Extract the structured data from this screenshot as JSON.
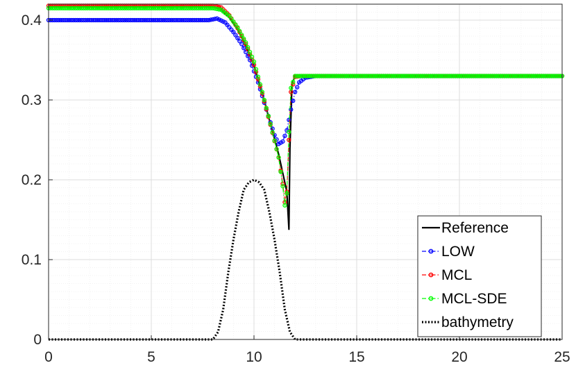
{
  "chart_data": {
    "type": "line",
    "title": "",
    "xlabel": "",
    "ylabel": "",
    "xlim": [
      0,
      25
    ],
    "ylim": [
      0,
      0.42
    ],
    "xticks": [
      0,
      5,
      10,
      15,
      20,
      25
    ],
    "xtick_labels": [
      "0",
      "5",
      "10",
      "15",
      "20",
      "25"
    ],
    "yticks": [
      0,
      0.1,
      0.2,
      0.3,
      0.4
    ],
    "ytick_labels": [
      "0",
      "0.1",
      "0.2",
      "0.3",
      "0.4"
    ],
    "grid": true,
    "minor_grid": true,
    "legend_position": "bottom-right",
    "colors": {
      "reference": "#000000",
      "low": "#0000ff",
      "mcl": "#ff0000",
      "mcl_sde": "#00ff00",
      "bathymetry": "#000000",
      "grid": "#dcdcdc",
      "axes": "#262626"
    },
    "series": [
      {
        "name": "Reference",
        "style": "solid",
        "marker": "none",
        "x": [
          0,
          8.0,
          8.4,
          8.8,
          9.2,
          9.6,
          10.0,
          10.4,
          10.8,
          11.2,
          11.6,
          11.7,
          11.75,
          11.85,
          12.0,
          25
        ],
        "y": [
          0.417,
          0.417,
          0.413,
          0.403,
          0.388,
          0.368,
          0.343,
          0.309,
          0.27,
          0.232,
          0.185,
          0.138,
          0.24,
          0.32,
          0.33,
          0.33
        ]
      },
      {
        "name": "LOW",
        "style": "dashdot",
        "marker": "circle",
        "x": [
          0,
          7.8,
          8.2,
          8.6,
          9.0,
          9.4,
          9.8,
          10.2,
          10.6,
          11.0,
          11.2,
          11.4,
          11.6,
          11.8,
          12.0,
          12.2,
          12.5,
          13.0,
          25
        ],
        "y": [
          0.4,
          0.4,
          0.402,
          0.397,
          0.385,
          0.37,
          0.35,
          0.322,
          0.288,
          0.256,
          0.245,
          0.248,
          0.262,
          0.288,
          0.31,
          0.322,
          0.328,
          0.33,
          0.33
        ],
        "markers_x": [
          0,
          25
        ],
        "marker_spacing": 0.1
      },
      {
        "name": "MCL",
        "style": "dashdot",
        "marker": "circle",
        "x": [
          0,
          8.0,
          8.4,
          8.8,
          9.2,
          9.6,
          10.0,
          10.4,
          10.8,
          11.2,
          11.4,
          11.5,
          11.6,
          11.7,
          11.8,
          12.0,
          12.3,
          25
        ],
        "y": [
          0.418,
          0.418,
          0.416,
          0.406,
          0.39,
          0.37,
          0.344,
          0.308,
          0.269,
          0.228,
          0.195,
          0.172,
          0.185,
          0.25,
          0.31,
          0.329,
          0.33,
          0.33
        ],
        "marker_spacing": 0.1
      },
      {
        "name": "MCL-SDE",
        "style": "dashdot",
        "marker": "circle",
        "x": [
          0,
          8.0,
          8.4,
          8.8,
          9.2,
          9.6,
          10.0,
          10.4,
          10.8,
          11.2,
          11.4,
          11.5,
          11.6,
          11.7,
          11.8,
          12.0,
          12.3,
          25
        ],
        "y": [
          0.415,
          0.415,
          0.413,
          0.405,
          0.391,
          0.372,
          0.348,
          0.31,
          0.27,
          0.228,
          0.192,
          0.168,
          0.183,
          0.26,
          0.315,
          0.33,
          0.33,
          0.33
        ],
        "marker_spacing": 0.1
      },
      {
        "name": "bathymetry",
        "style": "dotted",
        "marker": "none",
        "x": [
          0,
          8.0,
          8.25,
          8.5,
          8.75,
          9.0,
          9.25,
          9.5,
          9.75,
          10.0,
          10.25,
          10.5,
          10.75,
          11.0,
          11.25,
          11.5,
          11.75,
          12.0,
          25
        ],
        "y": [
          0,
          0,
          0.0094,
          0.0375,
          0.0844,
          0.125,
          0.1594,
          0.1875,
          0.1969,
          0.2,
          0.1969,
          0.1875,
          0.1594,
          0.125,
          0.0844,
          0.0375,
          0.0094,
          0,
          0
        ]
      }
    ]
  }
}
